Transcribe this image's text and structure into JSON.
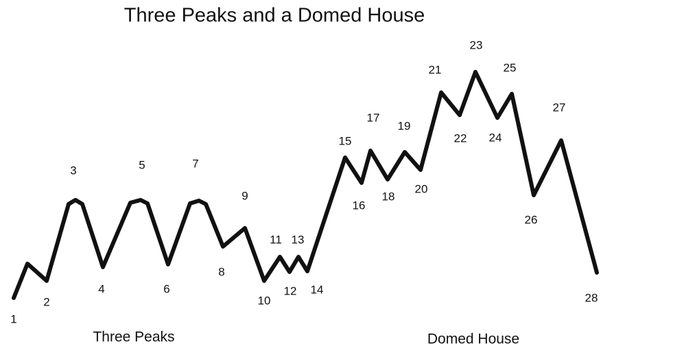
{
  "title": "Three Peaks and a Domed House",
  "points": [
    "1",
    "2",
    "3",
    "4",
    "5",
    "6",
    "7",
    "8",
    "9",
    "10",
    "11",
    "12",
    "13",
    "14",
    "15",
    "16",
    "17",
    "18",
    "19",
    "20",
    "21",
    "22",
    "23",
    "24",
    "25",
    "26",
    "27",
    "28"
  ],
  "sections": [
    "Three Peaks",
    "Domed House"
  ]
}
